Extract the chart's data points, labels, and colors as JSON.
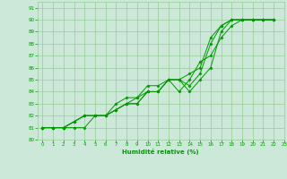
{
  "bg_color": "#cce8d8",
  "grid_color": "#99cc99",
  "line_color": "#009900",
  "marker_color": "#009900",
  "xlabel": "Humidité relative (%)",
  "xlabel_color": "#009900",
  "tick_color": "#009900",
  "xlim": [
    -0.5,
    23
  ],
  "ylim": [
    80,
    91.5
  ],
  "yticks": [
    80,
    81,
    82,
    83,
    84,
    85,
    86,
    87,
    88,
    89,
    90,
    91
  ],
  "xticks": [
    0,
    1,
    2,
    3,
    4,
    5,
    6,
    7,
    8,
    9,
    10,
    11,
    12,
    13,
    14,
    15,
    16,
    17,
    18,
    19,
    20,
    21,
    22,
    23
  ],
  "series1": [
    81.0,
    81.0,
    81.0,
    81.0,
    81.0,
    82.0,
    82.0,
    82.5,
    83.0,
    83.0,
    84.0,
    84.0,
    85.0,
    85.0,
    85.5,
    86.0,
    88.5,
    89.5,
    90.0,
    90.0,
    90.0,
    90.0,
    90.0
  ],
  "series2": [
    81.0,
    81.0,
    81.0,
    81.5,
    82.0,
    82.0,
    82.0,
    82.5,
    83.0,
    83.0,
    84.0,
    84.0,
    85.0,
    85.0,
    84.0,
    85.0,
    86.0,
    89.0,
    90.0,
    90.0,
    90.0,
    90.0,
    90.0
  ],
  "series3": [
    81.0,
    81.0,
    81.0,
    81.5,
    82.0,
    82.0,
    82.0,
    82.5,
    83.0,
    83.5,
    84.0,
    84.0,
    85.0,
    85.0,
    84.5,
    85.5,
    88.0,
    89.5,
    90.0,
    90.0,
    90.0,
    90.0,
    90.0
  ],
  "series4": [
    81.0,
    81.0,
    81.0,
    81.5,
    82.0,
    82.0,
    82.0,
    83.0,
    83.5,
    83.5,
    84.5,
    84.5,
    85.0,
    84.0,
    85.0,
    86.5,
    87.0,
    88.5,
    89.5,
    90.0,
    90.0,
    90.0,
    90.0
  ]
}
